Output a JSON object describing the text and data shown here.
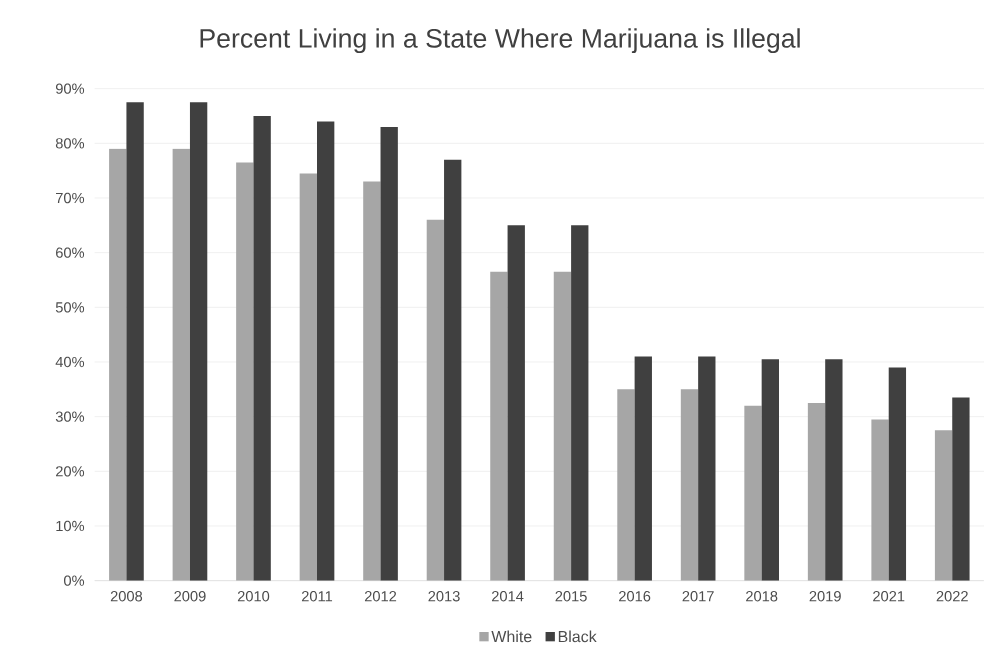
{
  "chart_data": {
    "type": "bar",
    "title": "Percent Living in a State Where Marijuana is Illegal",
    "categories": [
      "2008",
      "2009",
      "2010",
      "2011",
      "2012",
      "2013",
      "2014",
      "2015",
      "2016",
      "2017",
      "2018",
      "2019",
      "2021",
      "2022"
    ],
    "series": [
      {
        "name": "White",
        "color": "#a6a6a6",
        "values": [
          79,
          79,
          76.5,
          74.5,
          73,
          66,
          56.5,
          56.5,
          35,
          35,
          32,
          32.5,
          29.5,
          27.5
        ]
      },
      {
        "name": "Black",
        "color": "#404040",
        "values": [
          87.5,
          87.5,
          85,
          84,
          83,
          77,
          65,
          65,
          41,
          41,
          40.5,
          40.5,
          39,
          33.5
        ]
      }
    ],
    "ylim": [
      0,
      90
    ],
    "yticks": [
      {
        "value": 0,
        "label": "0%"
      },
      {
        "value": 10,
        "label": "10%"
      },
      {
        "value": 20,
        "label": "20%"
      },
      {
        "value": 30,
        "label": "30%"
      },
      {
        "value": 40,
        "label": "40%"
      },
      {
        "value": 50,
        "label": "50%"
      },
      {
        "value": 60,
        "label": "60%"
      },
      {
        "value": 70,
        "label": "70%"
      },
      {
        "value": 80,
        "label": "80%"
      },
      {
        "value": 90,
        "label": "90%"
      }
    ],
    "grid": "y",
    "legend": "bottom"
  }
}
